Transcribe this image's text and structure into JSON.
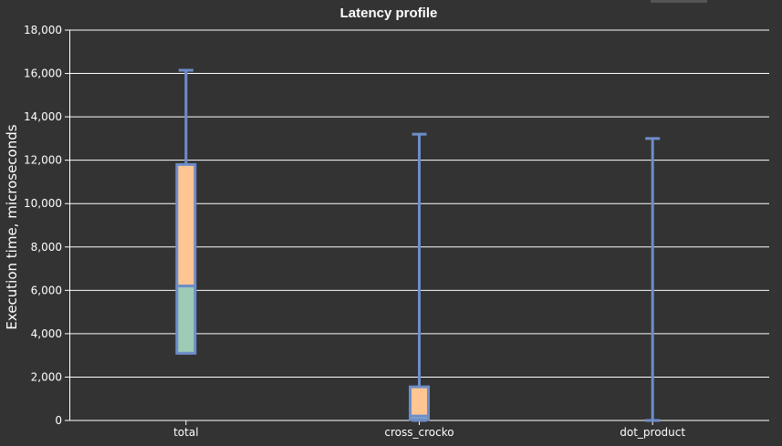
{
  "chart_data": {
    "type": "boxplot",
    "title": "Latency profile",
    "xlabel": "",
    "ylabel": "Execution time, microseconds",
    "ylim": [
      0,
      18000
    ],
    "yticks": [
      "0",
      "2,000",
      "4,000",
      "6,000",
      "8,000",
      "10,000",
      "12,000",
      "14,000",
      "16,000",
      "18,000"
    ],
    "grid": true,
    "categories": [
      "total",
      "cross_crocko",
      "dot_product"
    ],
    "boxes": [
      {
        "category": "total",
        "min": 3100,
        "q1": 3100,
        "median": 6200,
        "q3": 11800,
        "max": 16150
      },
      {
        "category": "cross_crocko",
        "min": 0,
        "q1": 50,
        "median": 200,
        "q3": 1550,
        "max": 13200
      },
      {
        "category": "dot_product",
        "min": 0,
        "q1": 0,
        "median": 0,
        "q3": 0,
        "max": 13000
      }
    ],
    "colors": {
      "background": "#333333",
      "grid": "#ffffff",
      "whisker": "#6e8dc9",
      "upper_box": "#ffc593",
      "lower_box": "#9ecbb6",
      "text": "#ffffff"
    }
  }
}
